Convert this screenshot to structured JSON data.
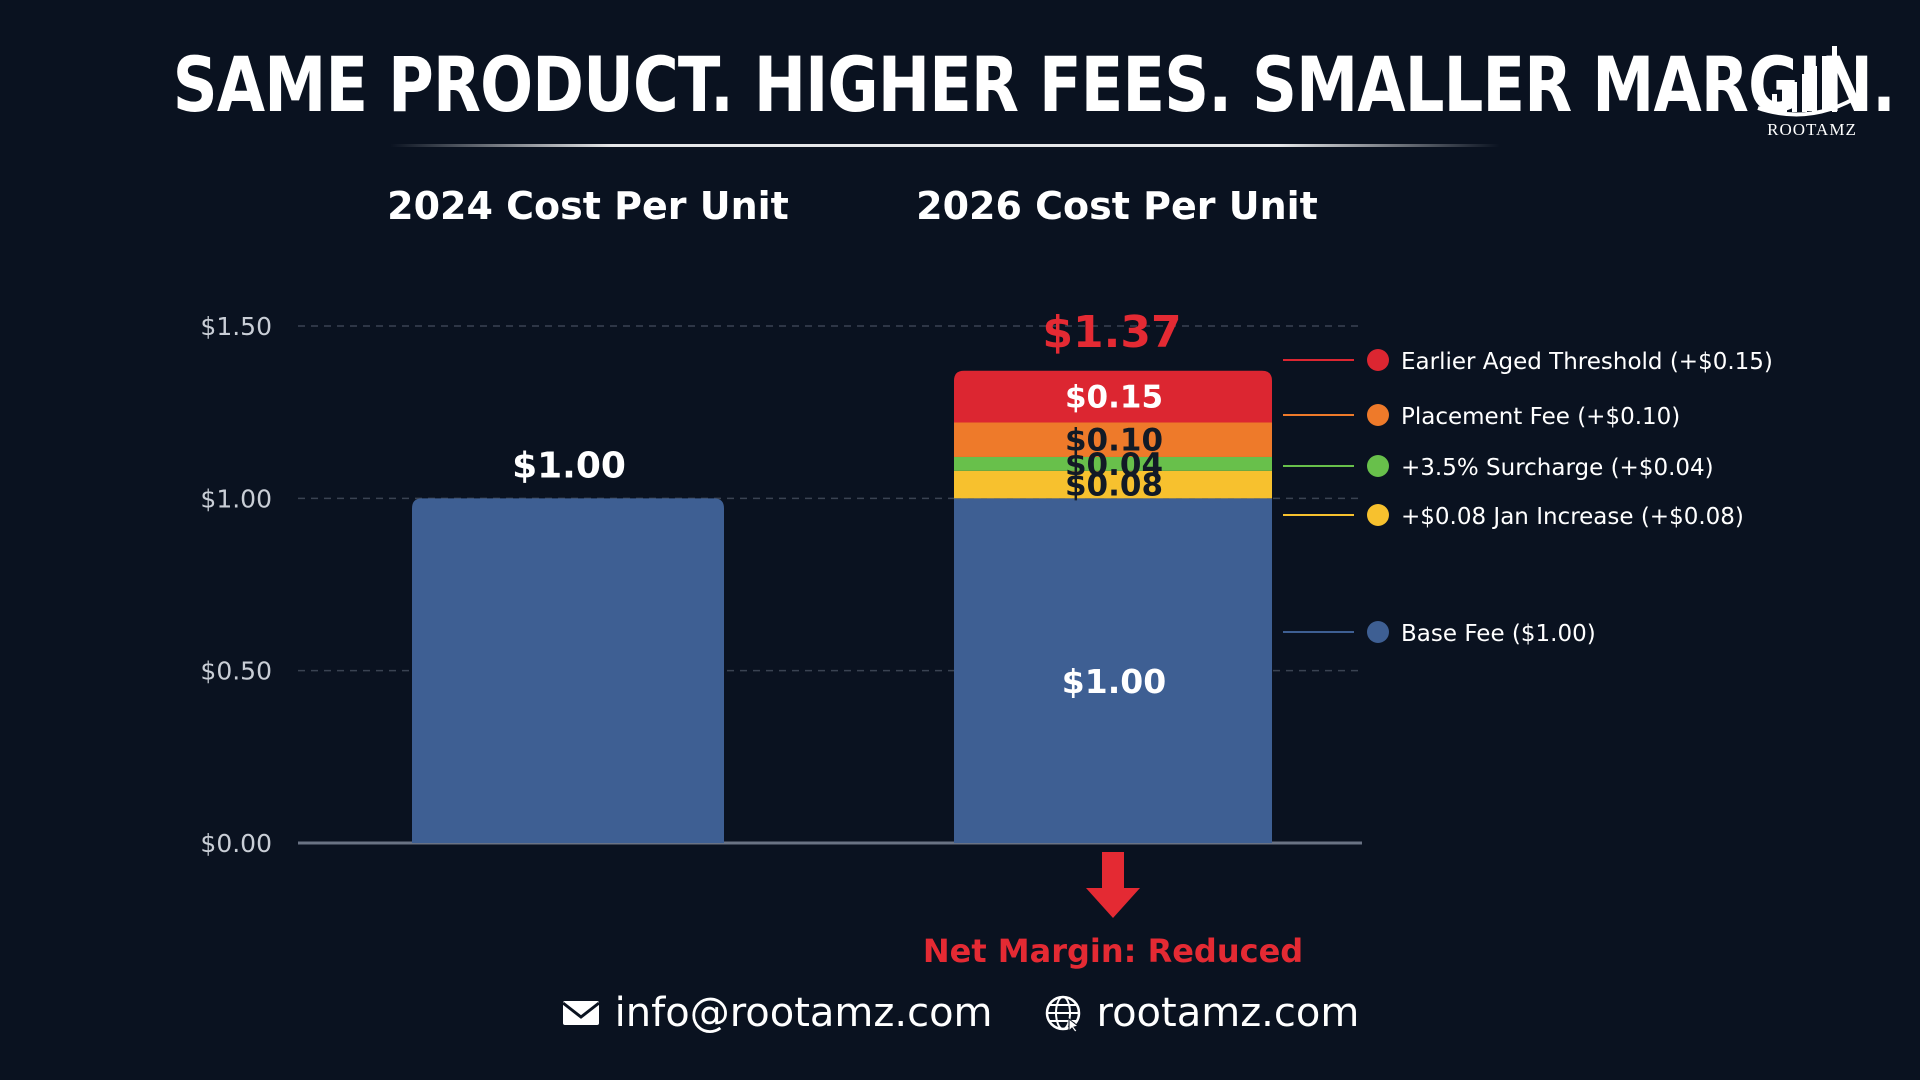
{
  "header": {
    "title": "SAME PRODUCT. HIGHER FEES. SMALLER MARGIN.",
    "logo_text": "ROOTAMZ"
  },
  "chart_data": {
    "type": "bar",
    "stacked": true,
    "categories": [
      "2024 Cost Per Unit",
      "2026 Cost Per Unit"
    ],
    "yticks": [
      "$0.00",
      "$0.50",
      "$1.00",
      "$1.50"
    ],
    "ytick_values": [
      0,
      0.5,
      1.0,
      1.5
    ],
    "ylim": [
      0,
      1.5
    ],
    "grid": true,
    "legend_position": "right",
    "series": [
      {
        "name": "Base Fee ($1.00)",
        "values": [
          1.0,
          1.0
        ],
        "labels": [
          "$1.00",
          "$1.00"
        ],
        "color": "#3e5f93"
      },
      {
        "name": "+$0.08 Jan Increase (+$0.08)",
        "values": [
          0,
          0.08
        ],
        "labels": [
          "",
          "$0.08"
        ],
        "color": "#f7c12e"
      },
      {
        "name": "+3.5% Surcharge (+$0.04)",
        "values": [
          0,
          0.04
        ],
        "labels": [
          "",
          "$0.04"
        ],
        "color": "#68c04b"
      },
      {
        "name": "Placement Fee (+$0.10)",
        "values": [
          0,
          0.1
        ],
        "labels": [
          "",
          "$0.10"
        ],
        "color": "#ee7a2a"
      },
      {
        "name": "Earlier Aged Threshold (+$0.15)",
        "values": [
          0,
          0.15
        ],
        "labels": [
          "",
          "$0.15"
        ],
        "color": "#dc2631"
      }
    ],
    "totals": [
      "$1.00",
      "$1.37"
    ],
    "annotation": "Net Margin: Reduced",
    "colors": {
      "total_highlight": "#e42a33",
      "annotation": "#e42a33",
      "axis": "#6a7384",
      "grid": "#3a4352",
      "tick_text": "#c9ced6"
    }
  },
  "footer": {
    "email": "info@rootamz.com",
    "website": "rootamz.com",
    "email_icon": "envelope-icon",
    "website_icon": "globe-icon"
  }
}
